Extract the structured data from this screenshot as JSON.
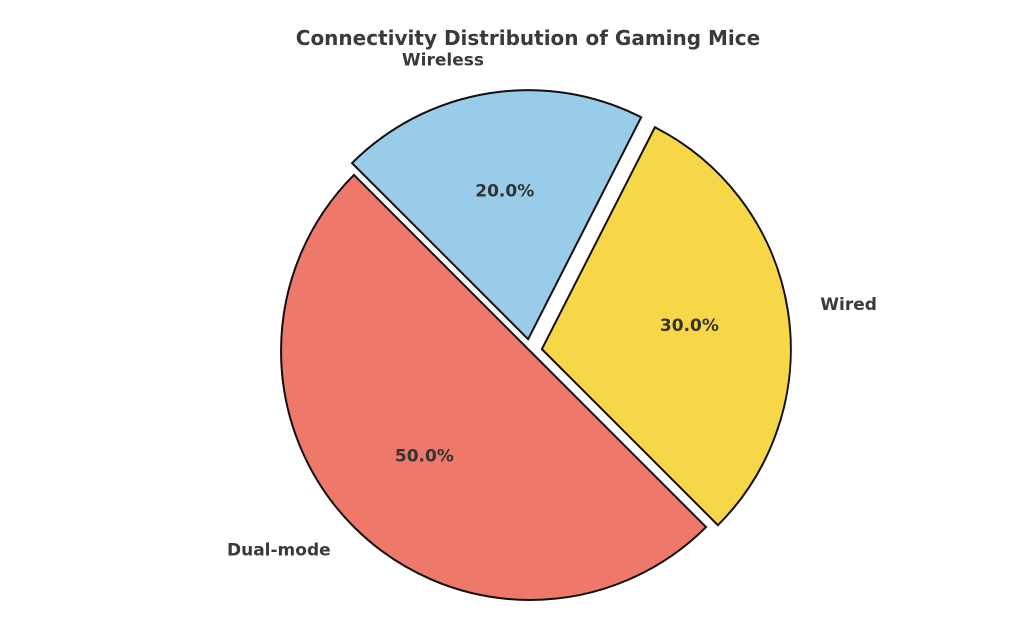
{
  "chart_data": {
    "type": "pie",
    "title": "Connectivity Distribution of Gaming Mice",
    "slices": [
      {
        "label": "Wired",
        "value": 30,
        "pct_label": "30.0%",
        "color": "#f7d748",
        "exploded": true
      },
      {
        "label": "Wireless",
        "value": 20,
        "pct_label": "20.0%",
        "color": "#99cce8",
        "exploded": true
      },
      {
        "label": "Dual-mode",
        "value": 50,
        "pct_label": "50.0%",
        "color": "#ee786a",
        "exploded": false
      }
    ],
    "start_angle_deg": -45,
    "direction": "counterclockwise",
    "legend": "none"
  }
}
